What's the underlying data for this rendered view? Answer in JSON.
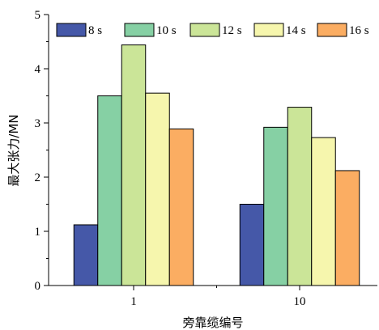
{
  "chart_data": {
    "type": "bar",
    "categories": [
      "1",
      "10"
    ],
    "series": [
      {
        "name": "8 s",
        "color": "#4558a8",
        "values": [
          1.12,
          1.5
        ]
      },
      {
        "name": "10 s",
        "color": "#86d0a4",
        "values": [
          3.5,
          2.92
        ]
      },
      {
        "name": "12 s",
        "color": "#cbe598",
        "values": [
          4.44,
          3.29
        ]
      },
      {
        "name": "14 s",
        "color": "#f6f6ad",
        "values": [
          3.55,
          2.73
        ]
      },
      {
        "name": "16 s",
        "color": "#fbad62",
        "values": [
          2.89,
          2.12
        ]
      }
    ],
    "xlabel": "旁靠缆编号",
    "ylabel": "最大张力/MN",
    "ylim": [
      0,
      5
    ],
    "yticks": [
      "0",
      "1",
      "2",
      "3",
      "4",
      "5"
    ],
    "grid": false,
    "legend_position": "top"
  }
}
